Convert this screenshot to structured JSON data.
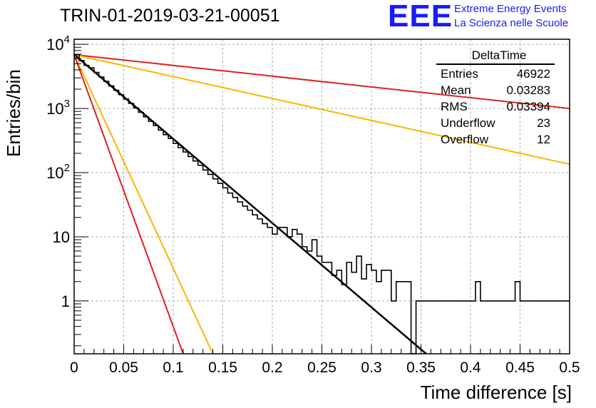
{
  "run_title": "TRIN-01-2019-03-21-00051",
  "logo": {
    "text": "EEE",
    "line1": "Extreme Energy Events",
    "line2": "La Scienza nelle Scuole",
    "color": "#1a1aff"
  },
  "stats_box": {
    "title": "DeltaTime",
    "rows": [
      {
        "label": "Entries",
        "value": "46922"
      },
      {
        "label": "Mean",
        "value": "0.03283"
      },
      {
        "label": "RMS",
        "value": "0.03394"
      },
      {
        "label": "Underflow",
        "value": "23"
      },
      {
        "label": "Overflow",
        "value": "12"
      }
    ]
  },
  "chart_data": {
    "type": "line",
    "xlabel": "Time difference [s]",
    "ylabel": "Entries/bin",
    "xlim": [
      0,
      0.5
    ],
    "ylim": [
      0.15,
      12000
    ],
    "yscale": "log",
    "grid": true,
    "x_ticks": [
      0,
      0.05,
      0.1,
      0.15,
      0.2,
      0.25,
      0.3,
      0.35,
      0.4,
      0.45,
      0.5
    ],
    "x_tick_labels": [
      "0",
      "0.05",
      "0.1",
      "0.15",
      "0.2",
      "0.25",
      "0.3",
      "0.35",
      "0.4",
      "0.45",
      "0.5"
    ],
    "y_ticks": [
      1,
      10,
      100,
      1000,
      10000
    ],
    "y_tick_labels": [
      "1",
      "10",
      "10^2",
      "10^3",
      "10^4"
    ],
    "histogram": {
      "bin_width": 0.005,
      "x_start": 0,
      "counts": [
        6900,
        5600,
        4700,
        4300,
        3650,
        3100,
        2650,
        2250,
        1920,
        1640,
        1400,
        1200,
        1020,
        870,
        740,
        630,
        540,
        460,
        390,
        340,
        285,
        245,
        210,
        178,
        152,
        130,
        110,
        94,
        80,
        68,
        58,
        48,
        41,
        35,
        30,
        26,
        22,
        19,
        16,
        14,
        11,
        14,
        14,
        10,
        13,
        11,
        7,
        6,
        9,
        5,
        4,
        4,
        2.5,
        3,
        1.8,
        4,
        2.8,
        5,
        2.2,
        3.7,
        3,
        2,
        3,
        3,
        1,
        2,
        2,
        2,
        0.1,
        1,
        1,
        1,
        1,
        1,
        1,
        1,
        1,
        1,
        1,
        1,
        1,
        2,
        1,
        1,
        1,
        1,
        1,
        1,
        1,
        2,
        1,
        1,
        1,
        1,
        1,
        1,
        1,
        1,
        1,
        1
      ],
      "color": "#000000"
    },
    "series": [
      {
        "values": [
          [
            0,
            6900
          ],
          [
            0.5,
            1000
          ]
        ],
        "color": "#e02020"
      },
      {
        "values": [
          [
            0,
            6900
          ],
          [
            0.5,
            135
          ]
        ],
        "color": "#f5b800"
      },
      {
        "values": [
          [
            0,
            6900
          ],
          [
            0.36,
            0.13
          ]
        ],
        "color": "#000000"
      },
      {
        "values": [
          [
            0,
            6900
          ],
          [
            0.14,
            0.15
          ]
        ],
        "color": "#f5b800"
      },
      {
        "values": [
          [
            0,
            6900
          ],
          [
            0.11,
            0.15
          ]
        ],
        "color": "#e02020"
      }
    ]
  }
}
